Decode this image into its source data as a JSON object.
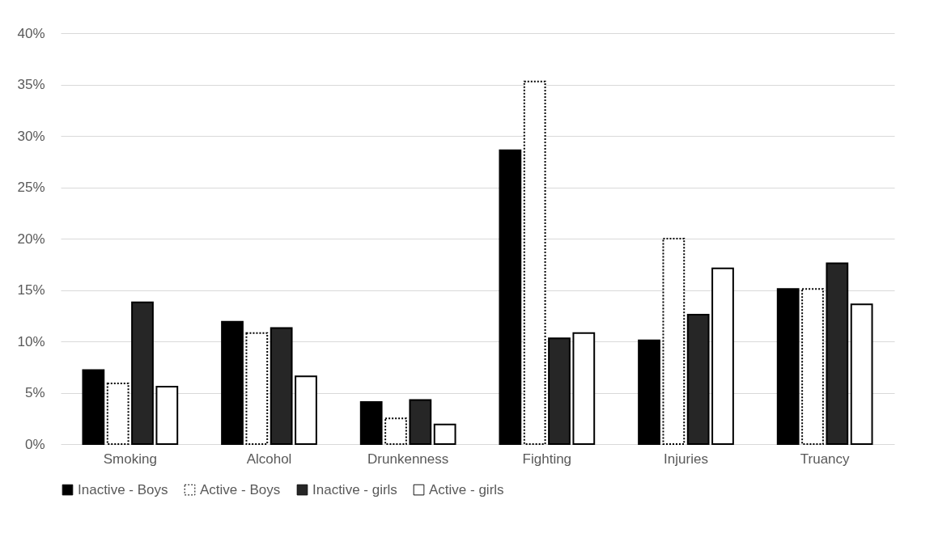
{
  "chart_data": {
    "type": "bar",
    "categories": [
      "Smoking",
      "Alcohol",
      "Drunkenness",
      "Fighting",
      "Injuries",
      "Truancy"
    ],
    "series": [
      {
        "name": "Inactive - Boys",
        "color": "#000000",
        "values": [
          7.2,
          11.9,
          4.1,
          28.6,
          10.1,
          15.1
        ]
      },
      {
        "name": "Active - Boys",
        "color": "#ffffff",
        "line_style": "dotted",
        "values": [
          5.9,
          10.8,
          2.5,
          35.3,
          20.0,
          15.1
        ]
      },
      {
        "name": "Inactive - girls",
        "color": "#262626",
        "values": [
          13.8,
          11.3,
          4.3,
          10.3,
          12.6,
          17.6
        ]
      },
      {
        "name": "Active - girls",
        "color": "#ffffff",
        "values": [
          5.6,
          6.6,
          1.9,
          10.8,
          17.1,
          13.6
        ]
      }
    ],
    "ylim": [
      0,
      40
    ],
    "yticks": [
      {
        "value": 0,
        "label": "0%"
      },
      {
        "value": 5,
        "label": "5%"
      },
      {
        "value": 10,
        "label": "10%"
      },
      {
        "value": 15,
        "label": "15%"
      },
      {
        "value": 20,
        "label": "20%"
      },
      {
        "value": 25,
        "label": "25%"
      },
      {
        "value": 30,
        "label": "30%"
      },
      {
        "value": 35,
        "label": "35%"
      },
      {
        "value": 40,
        "label": "40%"
      }
    ],
    "grid": "y",
    "legend": "bottom"
  }
}
